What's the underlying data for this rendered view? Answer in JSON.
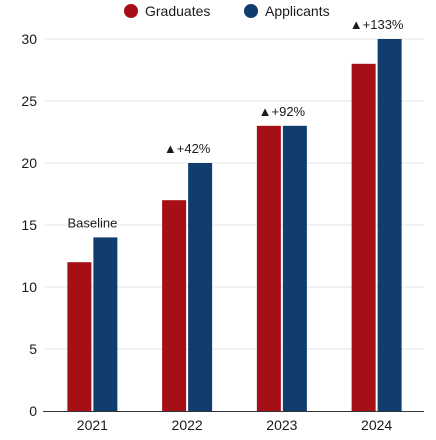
{
  "chart_data": {
    "type": "bar",
    "categories": [
      "2021",
      "2022",
      "2023",
      "2024"
    ],
    "series": [
      {
        "name": "Graduates",
        "values": [
          12,
          17,
          23,
          28
        ],
        "color": "#a50f15"
      },
      {
        "name": "Applicants",
        "values": [
          14,
          20,
          23,
          30
        ],
        "color": "#103d6e"
      }
    ],
    "ylim": [
      0,
      30
    ],
    "yticks": [
      0,
      5,
      10,
      15,
      20,
      25,
      30
    ],
    "grid": true,
    "legend": "top-center",
    "annotations": [
      {
        "category": "2021",
        "text": "Baseline",
        "marker": ""
      },
      {
        "category": "2022",
        "text": "+42%",
        "marker": "triangle-up"
      },
      {
        "category": "2023",
        "text": "+92%",
        "marker": "triangle-up"
      },
      {
        "category": "2024",
        "text": "+133%",
        "marker": "triangle-up"
      }
    ],
    "gridColor": "#e6e6e6",
    "axisColor": "#333333"
  }
}
